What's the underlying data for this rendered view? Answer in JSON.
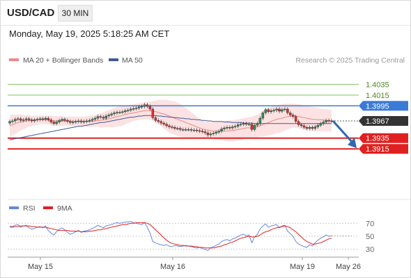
{
  "header": {
    "symbol": "USD/CAD",
    "interval": "30 MIN",
    "timestamp": "Monday, May 19, 2025 5:18:25 AM CET"
  },
  "credit": "Research © 2025 Trading Central",
  "colors": {
    "bullish_candle": "#2e8b57",
    "bearish_candle": "#d63030",
    "ma20": "#ee8888",
    "bands_fill": "#fbdddd",
    "ma50": "#3d5a99",
    "resistance": "#3a7bd5",
    "support": "#e02020",
    "target_line": "#80c060",
    "target_label": "#4d8a1a",
    "current_price_label": "#333333",
    "rsi": "#6688dd",
    "rsi_ma": "#e02020",
    "arrow": "#2f67b2"
  },
  "chart_data": [
    {
      "type": "candlestick",
      "title": "",
      "legend": [
        {
          "name": "MA 20 + Bollinger Bands",
          "color": "#ee8888",
          "style": "bar"
        },
        {
          "name": "MA 50",
          "color": "#3d5a99",
          "style": "bar"
        }
      ],
      "legend_position": "top-left",
      "x_labels": [
        "May 15",
        "May 16",
        "May 19",
        "May 26"
      ],
      "y_range": [
        1.383,
        1.406
      ],
      "grid": false,
      "levels": [
        {
          "value": 1.4035,
          "label": "1.4035",
          "kind": "target"
        },
        {
          "value": 1.4015,
          "label": "1.4015",
          "kind": "target"
        },
        {
          "value": 1.3995,
          "label": "1.3995",
          "kind": "resistance"
        },
        {
          "value": 1.3935,
          "label": "1.3935",
          "kind": "support"
        },
        {
          "value": 1.3915,
          "label": "1.3915",
          "kind": "support"
        }
      ],
      "current_price": {
        "value": 1.3967,
        "label": "1.3967"
      },
      "arrow": {
        "direction": "down",
        "from": 1.3967,
        "to": 1.3915
      },
      "close_series": [
        1.3966,
        1.3967,
        1.397,
        1.3971,
        1.3968,
        1.3969,
        1.3971,
        1.3969,
        1.3967,
        1.3969,
        1.397,
        1.3971,
        1.397,
        1.3972,
        1.3969,
        1.3965,
        1.3962,
        1.3965,
        1.3968,
        1.397,
        1.3968,
        1.3966,
        1.3964,
        1.3965,
        1.3966,
        1.3967,
        1.3965,
        1.3966,
        1.3967,
        1.3968,
        1.397,
        1.3972,
        1.3975,
        1.3974,
        1.3972,
        1.3976,
        1.3978,
        1.398,
        1.3982,
        1.3983,
        1.3983,
        1.3984,
        1.3986,
        1.3987,
        1.3989,
        1.399,
        1.3991,
        1.3993,
        1.3994,
        1.3997,
        1.3994,
        1.3989,
        1.3973,
        1.3968,
        1.3966,
        1.3963,
        1.3961,
        1.3958,
        1.3956,
        1.3955,
        1.3953,
        1.3953,
        1.3951,
        1.3951,
        1.3951,
        1.3951,
        1.395,
        1.395,
        1.3949,
        1.3948,
        1.3947,
        1.3945,
        1.3941,
        1.3943,
        1.3944,
        1.3946,
        1.3948,
        1.3952,
        1.3954,
        1.3955,
        1.3954,
        1.3956,
        1.3957,
        1.396,
        1.3961,
        1.3962,
        1.3961,
        1.3961,
        1.3951,
        1.3959,
        1.3962,
        1.3972,
        1.3982,
        1.3988,
        1.3984,
        1.3986,
        1.3987,
        1.3989,
        1.3985,
        1.3988,
        1.3989,
        1.3982,
        1.3978,
        1.3975,
        1.3966,
        1.396,
        1.3958,
        1.3955,
        1.3953,
        1.3955,
        1.3953,
        1.3956,
        1.3959,
        1.3962,
        1.3965,
        1.3968,
        1.3967,
        1.3967
      ],
      "ma20": [
        1.3958,
        1.396,
        1.3962,
        1.3964,
        1.3965,
        1.3966,
        1.3967,
        1.3968,
        1.3968,
        1.3969,
        1.3969,
        1.3969,
        1.3969,
        1.3969,
        1.3969,
        1.3968,
        1.3967,
        1.3967,
        1.3967,
        1.3967,
        1.3967,
        1.3967,
        1.3967,
        1.3966,
        1.3966,
        1.3966,
        1.3966,
        1.3966,
        1.3966,
        1.3966,
        1.3966,
        1.3967,
        1.3968,
        1.3968,
        1.3969,
        1.397,
        1.3971,
        1.3972,
        1.3974,
        1.3975,
        1.3976,
        1.3977,
        1.3979,
        1.398,
        1.3981,
        1.3982,
        1.3983,
        1.3984,
        1.3985,
        1.3986,
        1.3986,
        1.3986,
        1.3985,
        1.3984,
        1.3983,
        1.3981,
        1.398,
        1.3978,
        1.3976,
        1.3974,
        1.3972,
        1.397,
        1.3968,
        1.3966,
        1.3964,
        1.3962,
        1.396,
        1.3958,
        1.3956,
        1.3954,
        1.3952,
        1.3951,
        1.395,
        1.3949,
        1.3948,
        1.3948,
        1.3948,
        1.3948,
        1.3948,
        1.3948,
        1.3949,
        1.3949,
        1.395,
        1.3951,
        1.3952,
        1.3953,
        1.3954,
        1.3954,
        1.3954,
        1.3955,
        1.3956,
        1.3958,
        1.396,
        1.3962,
        1.3964,
        1.3966,
        1.3968,
        1.397,
        1.3971,
        1.3972,
        1.3974,
        1.3975,
        1.3976,
        1.3977,
        1.3976,
        1.3975,
        1.3974,
        1.3973,
        1.3972,
        1.3971,
        1.397,
        1.397,
        1.3969,
        1.3969,
        1.3969,
        1.3968,
        1.3968,
        1.3967
      ],
      "bb_upper": [
        1.3978,
        1.3979,
        1.3979,
        1.3979,
        1.3979,
        1.3978,
        1.3978,
        1.3978,
        1.3977,
        1.3977,
        1.3977,
        1.3977,
        1.3977,
        1.3977,
        1.3977,
        1.3977,
        1.3976,
        1.3976,
        1.3976,
        1.3976,
        1.3975,
        1.3975,
        1.3975,
        1.3975,
        1.3975,
        1.3975,
        1.3975,
        1.3975,
        1.3976,
        1.3976,
        1.3977,
        1.3978,
        1.398,
        1.3981,
        1.3983,
        1.3985,
        1.3987,
        1.3989,
        1.3991,
        1.3993,
        1.3994,
        1.3995,
        1.3996,
        1.3996,
        1.3997,
        1.3998,
        1.3999,
        1.4,
        1.4001,
        1.4002,
        1.4002,
        1.4003,
        1.4004,
        1.4005,
        1.4006,
        1.4006,
        1.4006,
        1.4006,
        1.4005,
        1.4004,
        1.4003,
        1.4001,
        1.3998,
        1.3995,
        1.3991,
        1.3987,
        1.3983,
        1.3979,
        1.3975,
        1.3971,
        1.3968,
        1.3966,
        1.3965,
        1.3965,
        1.3965,
        1.3965,
        1.3966,
        1.3966,
        1.3967,
        1.3967,
        1.3968,
        1.3968,
        1.3969,
        1.397,
        1.3971,
        1.3972,
        1.3973,
        1.3974,
        1.3975,
        1.3977,
        1.3979,
        1.3982,
        1.3985,
        1.3988,
        1.3991,
        1.3993,
        1.3995,
        1.3996,
        1.3997,
        1.3998,
        1.3999,
        1.3999,
        1.3999,
        1.3999,
        1.3998,
        1.3998,
        1.3997,
        1.3996,
        1.3995,
        1.3994,
        1.3993,
        1.3992,
        1.3991,
        1.399,
        1.3989,
        1.3989,
        1.3988,
        1.3988
      ],
      "bb_lower": [
        1.3938,
        1.394,
        1.3943,
        1.3946,
        1.3949,
        1.3952,
        1.3954,
        1.3956,
        1.3958,
        1.3959,
        1.396,
        1.3961,
        1.3961,
        1.3961,
        1.396,
        1.3959,
        1.3958,
        1.3958,
        1.3958,
        1.3958,
        1.3958,
        1.3958,
        1.3958,
        1.3957,
        1.3957,
        1.3957,
        1.3957,
        1.3957,
        1.3956,
        1.3956,
        1.3956,
        1.3956,
        1.3956,
        1.3955,
        1.3955,
        1.3955,
        1.3955,
        1.3955,
        1.3956,
        1.3956,
        1.3957,
        1.3958,
        1.3961,
        1.3963,
        1.3965,
        1.3967,
        1.3968,
        1.3969,
        1.3969,
        1.397,
        1.397,
        1.3969,
        1.3967,
        1.3964,
        1.3961,
        1.3957,
        1.3953,
        1.3949,
        1.3946,
        1.3943,
        1.3941,
        1.3939,
        1.3938,
        1.3937,
        1.3937,
        1.3937,
        1.3937,
        1.3937,
        1.3937,
        1.3937,
        1.3937,
        1.3936,
        1.3935,
        1.3934,
        1.3933,
        1.3932,
        1.3931,
        1.3931,
        1.393,
        1.3929,
        1.3929,
        1.3929,
        1.393,
        1.3931,
        1.3932,
        1.3933,
        1.3934,
        1.3935,
        1.3935,
        1.3936,
        1.3937,
        1.3938,
        1.3938,
        1.3939,
        1.394,
        1.3941,
        1.3942,
        1.3944,
        1.3945,
        1.3947,
        1.3949,
        1.3951,
        1.3953,
        1.3955,
        1.3954,
        1.3953,
        1.3952,
        1.3951,
        1.395,
        1.3949,
        1.3948,
        1.3948,
        1.3948,
        1.3948,
        1.3948,
        1.3948,
        1.3948,
        1.3947
      ],
      "ma50": [
        1.3932,
        1.3933,
        1.3934,
        1.3935,
        1.3936,
        1.3937,
        1.3938,
        1.3939,
        1.394,
        1.3941,
        1.3942,
        1.3943,
        1.3944,
        1.3945,
        1.3946,
        1.3947,
        1.3948,
        1.3949,
        1.395,
        1.3951,
        1.3952,
        1.3953,
        1.3954,
        1.3955,
        1.3956,
        1.3957,
        1.3957,
        1.3958,
        1.3959,
        1.396,
        1.3961,
        1.3962,
        1.3963,
        1.3964,
        1.3964,
        1.3965,
        1.3966,
        1.3967,
        1.3968,
        1.3969,
        1.397,
        1.3971,
        1.3972,
        1.3973,
        1.3974,
        1.3974,
        1.3975,
        1.3976,
        1.3976,
        1.3977,
        1.3977,
        1.3977,
        1.3977,
        1.3977,
        1.3976,
        1.3976,
        1.3975,
        1.3975,
        1.3974,
        1.3974,
        1.3973,
        1.3973,
        1.3972,
        1.3972,
        1.3971,
        1.3971,
        1.397,
        1.397,
        1.3969,
        1.3969,
        1.3968,
        1.3968,
        1.3967,
        1.3967,
        1.3966,
        1.3966,
        1.3966,
        1.3966,
        1.3965,
        1.3965,
        1.3965,
        1.3964,
        1.3964,
        1.3964,
        1.3964,
        1.3963,
        1.3963,
        1.3963,
        1.3963,
        1.3962,
        1.3962,
        1.3962,
        1.3962,
        1.3962,
        1.3962,
        1.3962,
        1.3962,
        1.3962,
        1.3962,
        1.3962,
        1.3962,
        1.3962,
        1.3962,
        1.3962,
        1.3962,
        1.3962,
        1.3962,
        1.3962,
        1.3962,
        1.3962,
        1.3962,
        1.3962,
        1.3962,
        1.3962,
        1.3962,
        1.3962,
        1.3962,
        1.3962
      ]
    },
    {
      "type": "line",
      "title": "",
      "legend": [
        {
          "name": "RSI",
          "color": "#6688dd"
        },
        {
          "name": "9MA",
          "color": "#e02020"
        }
      ],
      "legend_position": "top-left",
      "y_ticks": [
        70,
        50,
        30
      ],
      "y_range": [
        20,
        80
      ],
      "grid": false,
      "series": [
        {
          "name": "RSI",
          "values": [
            66,
            65,
            67,
            68,
            64,
            66,
            67,
            63,
            61,
            62,
            64,
            65,
            63,
            66,
            59,
            55,
            52,
            57,
            61,
            63,
            60,
            56,
            53,
            55,
            57,
            59,
            56,
            58,
            59,
            60,
            62,
            64,
            67,
            65,
            63,
            66,
            67,
            68,
            70,
            71,
            70,
            71,
            72,
            72,
            73,
            71,
            70,
            69,
            68,
            71,
            64,
            55,
            42,
            40,
            38,
            37,
            36,
            37,
            35,
            34,
            36,
            35,
            34,
            35,
            36,
            35,
            34,
            33,
            32,
            33,
            31,
            30,
            28,
            32,
            34,
            36,
            38,
            42,
            44,
            45,
            43,
            46,
            47,
            50,
            52,
            53,
            51,
            52,
            40,
            49,
            53,
            61,
            66,
            69,
            64,
            66,
            67,
            68,
            63,
            66,
            67,
            58,
            54,
            50,
            42,
            38,
            36,
            34,
            33,
            37,
            35,
            40,
            44,
            47,
            49,
            52,
            50,
            51
          ]
        },
        {
          "name": "9MA",
          "values": [
            64,
            64,
            65,
            65,
            66,
            66,
            66,
            66,
            65,
            65,
            64,
            64,
            64,
            64,
            63,
            62,
            61,
            60,
            59,
            59,
            59,
            59,
            58,
            58,
            58,
            58,
            57,
            57,
            57,
            58,
            58,
            59,
            60,
            60,
            61,
            62,
            63,
            64,
            65,
            66,
            67,
            68,
            68,
            69,
            70,
            70,
            71,
            71,
            71,
            71,
            70,
            68,
            64,
            60,
            56,
            52,
            48,
            44,
            41,
            39,
            38,
            37,
            36,
            36,
            35,
            35,
            35,
            34,
            34,
            33,
            33,
            32,
            32,
            32,
            32,
            33,
            34,
            35,
            37,
            38,
            40,
            41,
            43,
            45,
            47,
            48,
            49,
            50,
            49,
            49,
            50,
            52,
            55,
            57,
            58,
            60,
            62,
            63,
            64,
            65,
            66,
            65,
            63,
            60,
            57,
            53,
            49,
            45,
            42,
            40,
            38,
            38,
            39,
            40,
            42,
            44,
            46,
            47
          ]
        }
      ]
    }
  ]
}
